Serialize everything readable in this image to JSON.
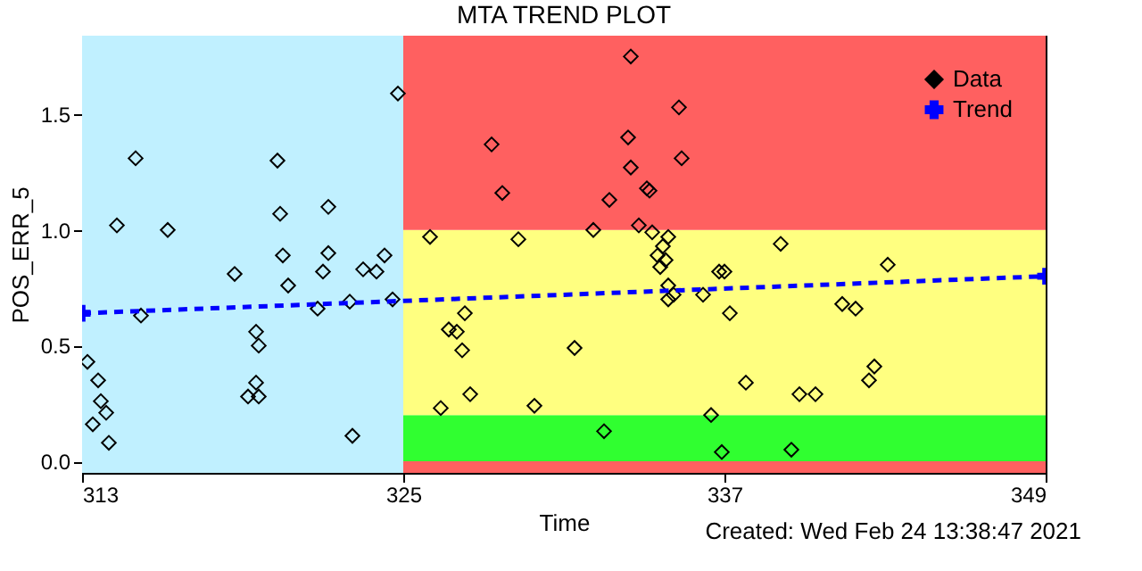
{
  "chart_data": {
    "type": "scatter",
    "title": "MTA TREND PLOT",
    "xlabel": "Time",
    "ylabel": "POS_ERR_5",
    "xlim": [
      313,
      349
    ],
    "xticks": [
      313,
      325,
      337,
      349
    ],
    "ylim": [
      -0.05,
      1.84
    ],
    "yticks": [
      {
        "value": 0,
        "label": "0.0"
      },
      {
        "value": 0.5,
        "label": "0.5"
      },
      {
        "value": 1.0,
        "label": "1.0"
      },
      {
        "value": 1.5,
        "label": "1.5"
      }
    ],
    "grid": false,
    "legend": "top right",
    "bands": [
      {
        "axis": "y",
        "from": -0.05,
        "to": 0,
        "color": "#ff6060"
      },
      {
        "axis": "y",
        "from": 0,
        "to": 0.2,
        "color": "#30ff30"
      },
      {
        "axis": "y",
        "from": 0.2,
        "to": 1.0,
        "color": "#ffff80"
      },
      {
        "axis": "y",
        "from": 1.0,
        "to": 1.84,
        "color": "#ff6060"
      },
      {
        "axis": "x",
        "from": 313,
        "to": 325,
        "color": "#c0f0ff"
      }
    ],
    "annotations": [
      "Created: Wed Feb 24 13:38:47 2021"
    ],
    "series": [
      {
        "name": "Data",
        "color": "#000000",
        "marker": "diamond",
        "x": [
          324.8,
          315.0,
          320.3,
          314.3,
          316.2,
          322.2,
          320.4,
          320.5,
          322.2,
          324.3,
          318.7,
          322.0,
          323.5,
          324.0,
          320.7,
          321.8,
          323.0,
          324.6,
          315.2,
          319.5,
          319.6,
          313.2,
          313.6,
          313.7,
          313.9,
          313.4,
          314.0,
          319.5,
          319.2,
          319.6,
          323.1,
          333.5,
          335.3,
          328.3,
          333.4,
          335.4,
          333.5,
          328.7,
          334.1,
          334.2,
          332.7,
          333.8,
          326.0,
          329.3,
          332.1,
          334.3,
          334.9,
          334.7,
          334.5,
          334.8,
          334.6,
          336.8,
          334.9,
          335.1,
          334.9,
          336.2,
          327.3,
          337.2,
          326.7,
          327.0,
          327.2,
          331.4,
          327.5,
          329.9,
          326.4,
          332.5,
          336.5,
          336.9,
          339.1,
          343.1,
          341.4,
          341.9,
          337.8,
          339.8,
          340.4,
          342.6,
          342.4,
          339.5,
          337.0
        ],
        "values": [
          1.59,
          1.31,
          1.3,
          1.02,
          1.0,
          1.1,
          1.07,
          0.89,
          0.9,
          0.89,
          0.81,
          0.82,
          0.83,
          0.82,
          0.76,
          0.66,
          0.69,
          0.7,
          0.63,
          0.56,
          0.5,
          0.43,
          0.35,
          0.26,
          0.21,
          0.16,
          0.08,
          0.34,
          0.28,
          0.28,
          0.11,
          1.75,
          1.53,
          1.37,
          1.4,
          1.31,
          1.27,
          1.16,
          1.18,
          1.17,
          1.13,
          1.02,
          0.97,
          0.96,
          1.0,
          0.99,
          0.97,
          0.93,
          0.89,
          0.87,
          0.84,
          0.82,
          0.76,
          0.72,
          0.7,
          0.72,
          0.64,
          0.64,
          0.57,
          0.56,
          0.48,
          0.49,
          0.29,
          0.24,
          0.23,
          0.13,
          0.2,
          0.04,
          0.94,
          0.85,
          0.68,
          0.66,
          0.34,
          0.29,
          0.29,
          0.41,
          0.35,
          0.05,
          0.82
        ]
      },
      {
        "name": "Trend",
        "type": "line",
        "color": "#0000ff",
        "marker": "cross",
        "line_style": "dashed",
        "x": [
          313,
          349
        ],
        "values": [
          0.64,
          0.8
        ]
      }
    ]
  }
}
